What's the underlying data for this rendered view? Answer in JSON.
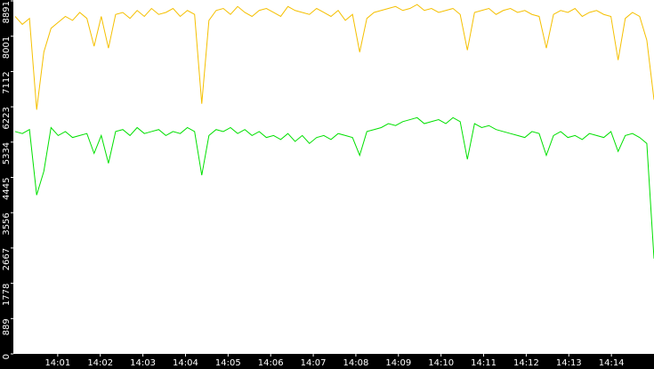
{
  "chart_data": {
    "type": "line",
    "series": [
      {
        "name": null,
        "color": "#f5c000",
        "values": [
          8500,
          8300,
          8450,
          6150,
          7600,
          8200,
          8350,
          8500,
          8400,
          8600,
          8450,
          7750,
          8500,
          7700,
          8550,
          8600,
          8450,
          8650,
          8500,
          8700,
          8550,
          8600,
          8700,
          8500,
          8650,
          8550,
          6300,
          8400,
          8650,
          8700,
          8550,
          8750,
          8600,
          8500,
          8650,
          8700,
          8600,
          8500,
          8750,
          8650,
          8600,
          8550,
          8700,
          8600,
          8500,
          8650,
          8400,
          8550,
          7600,
          8450,
          8600,
          8650,
          8700,
          8750,
          8650,
          8700,
          8800,
          8650,
          8700,
          8600,
          8650,
          8700,
          8550,
          7650,
          8600,
          8650,
          8700,
          8550,
          8650,
          8700,
          8600,
          8650,
          8550,
          8500,
          7700,
          8550,
          8650,
          8600,
          8700,
          8500,
          8600,
          8650,
          8550,
          8500,
          7400,
          8450,
          8600,
          8500,
          7900,
          6400
        ]
      },
      {
        "name": null,
        "color": "#00e000",
        "values": [
          5600,
          5550,
          5650,
          4000,
          4600,
          5700,
          5500,
          5600,
          5450,
          5500,
          5550,
          5050,
          5500,
          4800,
          5600,
          5650,
          5500,
          5700,
          5550,
          5600,
          5650,
          5500,
          5600,
          5550,
          5700,
          5600,
          4500,
          5500,
          5650,
          5600,
          5700,
          5550,
          5650,
          5500,
          5600,
          5450,
          5500,
          5400,
          5550,
          5350,
          5500,
          5300,
          5450,
          5500,
          5400,
          5550,
          5500,
          5450,
          5000,
          5600,
          5650,
          5700,
          5800,
          5750,
          5850,
          5900,
          5950,
          5800,
          5850,
          5900,
          5800,
          5950,
          5850,
          4900,
          5800,
          5700,
          5750,
          5650,
          5600,
          5550,
          5500,
          5450,
          5600,
          5550,
          5000,
          5500,
          5600,
          5450,
          5500,
          5400,
          5550,
          5500,
          5450,
          5600,
          5100,
          5500,
          5550,
          5450,
          5300,
          2400
        ]
      }
    ],
    "xlim": [
      0,
      15
    ],
    "xticks": [
      {
        "value": 1,
        "label": "14:01"
      },
      {
        "value": 2,
        "label": "14:02"
      },
      {
        "value": 3,
        "label": "14:03"
      },
      {
        "value": 4,
        "label": "14:04"
      },
      {
        "value": 5,
        "label": "14:05"
      },
      {
        "value": 6,
        "label": "14:06"
      },
      {
        "value": 7,
        "label": "14:07"
      },
      {
        "value": 8,
        "label": "14:08"
      },
      {
        "value": 9,
        "label": "14:09"
      },
      {
        "value": 10,
        "label": "14:10"
      },
      {
        "value": 11,
        "label": "14:11"
      },
      {
        "value": 12,
        "label": "14:12"
      },
      {
        "value": 13,
        "label": "14:13"
      },
      {
        "value": 14,
        "label": "14:14"
      }
    ],
    "ylim": [
      0,
      8891
    ],
    "yticks": [
      0,
      889,
      1778,
      2667,
      3556,
      4445,
      5334,
      6223,
      7112,
      8001,
      8891
    ],
    "background": "#ffffff"
  }
}
